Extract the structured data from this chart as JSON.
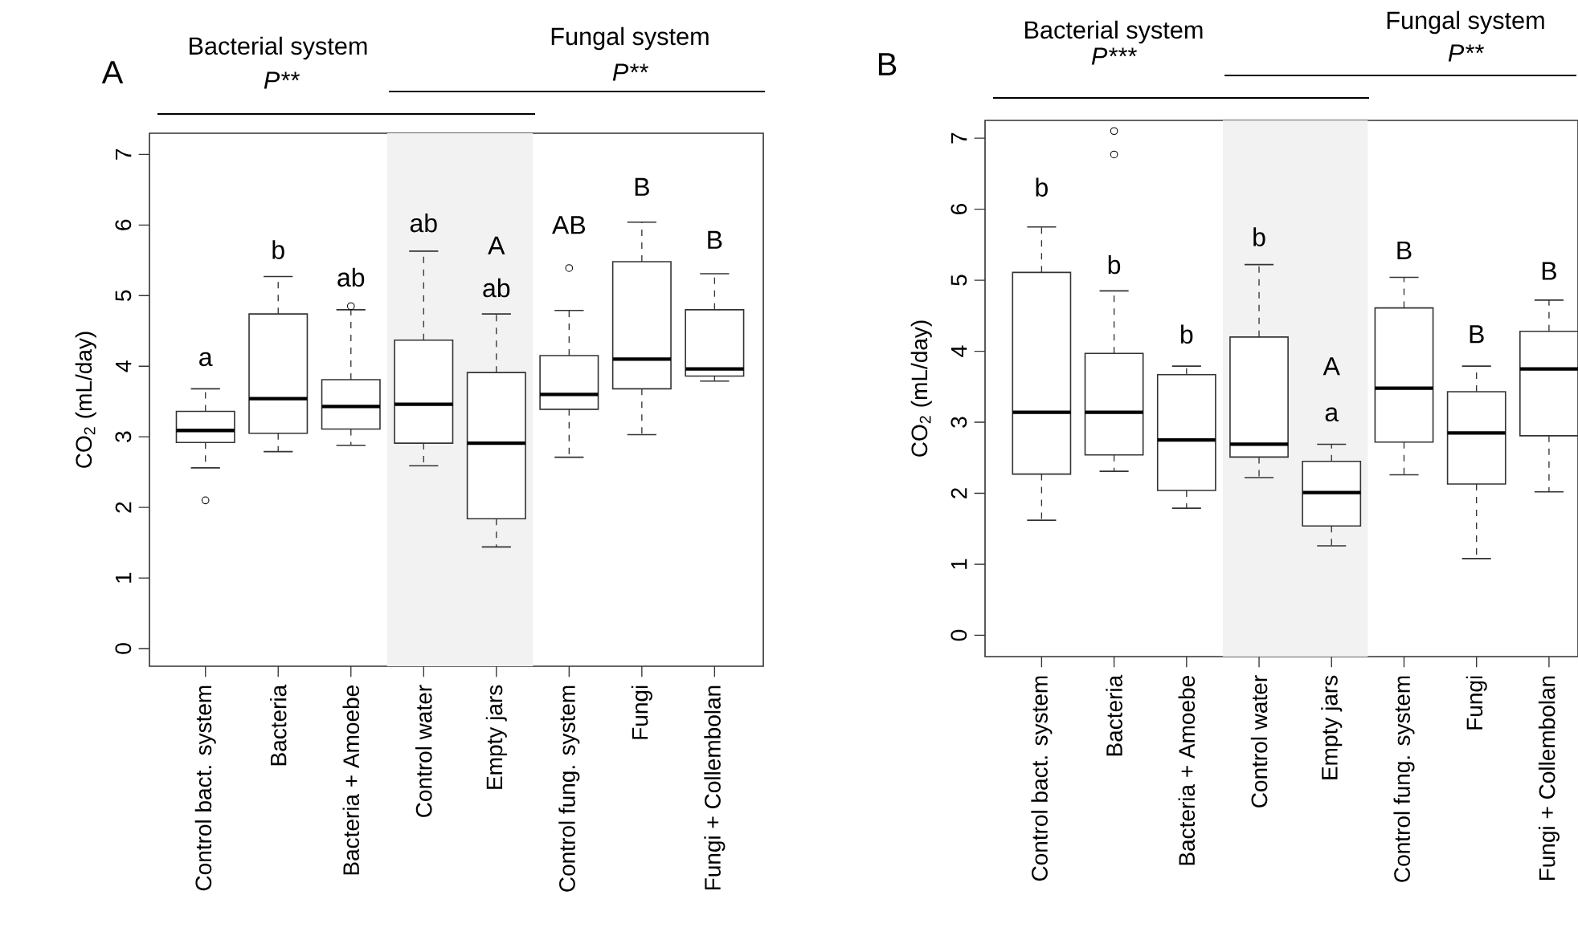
{
  "chart_data": [
    {
      "type": "box",
      "title": "A",
      "ylabel": "CO$_{2}$ (mL/day)",
      "categories": [
        "Control bact. system",
        "Bacteria",
        "Bacteria + Amoebe",
        "Control water",
        "Empty jars",
        "Control fung. system",
        "Fungi",
        "Fungi + Collembolan"
      ],
      "boxes": [
        {
          "low": 2.56,
          "q1": 2.92,
          "median": 3.09,
          "q3": 3.36,
          "high": 3.68,
          "outliers": [
            2.1
          ]
        },
        {
          "low": 2.79,
          "q1": 3.05,
          "median": 3.54,
          "q3": 4.74,
          "high": 5.27
        },
        {
          "low": 2.88,
          "q1": 3.11,
          "median": 3.43,
          "q3": 3.81,
          "high": 4.8,
          "outliers": [
            4.85
          ]
        },
        {
          "low": 2.59,
          "q1": 2.91,
          "median": 3.46,
          "q3": 4.37,
          "high": 5.63
        },
        {
          "low": 1.44,
          "q1": 1.84,
          "median": 2.91,
          "q3": 3.91,
          "high": 4.74
        },
        {
          "low": 2.71,
          "q1": 3.39,
          "median": 3.6,
          "q3": 4.15,
          "high": 4.79,
          "outliers": [
            5.39
          ]
        },
        {
          "low": 3.03,
          "q1": 3.68,
          "median": 4.1,
          "q3": 5.48,
          "high": 6.04
        },
        {
          "low": 3.79,
          "q1": 3.86,
          "median": 3.96,
          "q3": 4.8,
          "high": 5.31
        }
      ],
      "ylim": [
        -0.25,
        7.3
      ],
      "yticks": [
        0,
        1,
        2,
        3,
        4,
        5,
        6,
        7
      ],
      "bands": [
        {
          "axis": "x",
          "from": "Control water",
          "to": "Empty jars",
          "color": "#f2f2f2"
        }
      ],
      "annotations": [
        "Bacterial system",
        "P**",
        "Fungal system",
        "P**",
        "a",
        "b",
        "ab",
        "ab",
        "A",
        "ab",
        "AB",
        "B",
        "B"
      ]
    },
    {
      "type": "box",
      "title": "B",
      "ylabel": "CO$_{2}$ (mL/day)",
      "categories": [
        "Control bact. system",
        "Bacteria",
        "Bacteria + Amoebe",
        "Control water",
        "Empty jars",
        "Control fung. system",
        "Fungi",
        "Fungi + Collembolan"
      ],
      "boxes": [
        {
          "low": 1.62,
          "q1": 2.27,
          "median": 3.14,
          "q3": 5.11,
          "high": 5.75
        },
        {
          "low": 2.31,
          "q1": 2.54,
          "median": 3.14,
          "q3": 3.97,
          "high": 4.85,
          "outliers": [
            7.1,
            6.77
          ]
        },
        {
          "low": 1.79,
          "q1": 2.04,
          "median": 2.75,
          "q3": 3.67,
          "high": 3.79
        },
        {
          "low": 2.22,
          "q1": 2.51,
          "median": 2.69,
          "q3": 4.2,
          "high": 5.22
        },
        {
          "low": 1.26,
          "q1": 1.54,
          "median": 2.01,
          "q3": 2.45,
          "high": 2.69
        },
        {
          "low": 2.26,
          "q1": 2.72,
          "median": 3.48,
          "q3": 4.61,
          "high": 5.04
        },
        {
          "low": 1.08,
          "q1": 2.13,
          "median": 2.85,
          "q3": 3.43,
          "high": 3.79
        },
        {
          "low": 2.02,
          "q1": 2.81,
          "median": 3.75,
          "q3": 4.28,
          "high": 4.72
        }
      ],
      "ylim": [
        -0.3,
        7.25
      ],
      "yticks": [
        0,
        1,
        2,
        3,
        4,
        5,
        6,
        7
      ],
      "bands": [
        {
          "axis": "x",
          "from": "Control water",
          "to": "Empty jars",
          "color": "#f2f2f2"
        }
      ],
      "annotations": [
        "Bacterial system",
        "P***",
        "Fungal system",
        "P**",
        "b",
        "b",
        "b",
        "b",
        "A",
        "a",
        "B",
        "B",
        "B"
      ]
    }
  ]
}
